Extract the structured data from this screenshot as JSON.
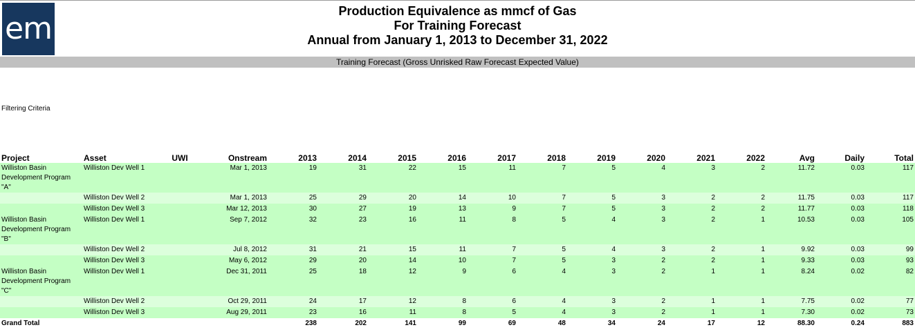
{
  "logo": {
    "text": "em"
  },
  "report": {
    "title": "Production Equivalence as mmcf of Gas",
    "subtitle": "For Training Forecast",
    "period": "Annual from January 1, 2013 to December 31, 2022",
    "banner": "Training Forecast (Gross Unrisked Raw Forecast Expected Value)",
    "filter_label": "Filtering Criteria"
  },
  "table": {
    "headers": [
      "Project",
      "Asset",
      "UWI",
      "Onstream",
      "2013",
      "2014",
      "2015",
      "2016",
      "2017",
      "2018",
      "2019",
      "2020",
      "2021",
      "2022",
      "Avg",
      "Daily",
      "Total"
    ],
    "rows": [
      [
        "Williston Basin Development Program \"A\"",
        "Williston Dev Well 1",
        "",
        "Mar 1, 2013",
        "19",
        "31",
        "22",
        "15",
        "11",
        "7",
        "5",
        "4",
        "3",
        "2",
        "11.72",
        "0.03",
        "117"
      ],
      [
        "",
        "Williston Dev Well 2",
        "",
        "Mar 1, 2013",
        "25",
        "29",
        "20",
        "14",
        "10",
        "7",
        "5",
        "3",
        "2",
        "2",
        "11.75",
        "0.03",
        "117"
      ],
      [
        "",
        "Williston Dev Well 3",
        "",
        "Mar 12, 2013",
        "30",
        "27",
        "19",
        "13",
        "9",
        "7",
        "5",
        "3",
        "2",
        "2",
        "11.77",
        "0.03",
        "118"
      ],
      [
        "Williston Basin Development Program \"B\"",
        "Williston Dev Well 1",
        "",
        "Sep 7, 2012",
        "32",
        "23",
        "16",
        "11",
        "8",
        "5",
        "4",
        "3",
        "2",
        "1",
        "10.53",
        "0.03",
        "105"
      ],
      [
        "",
        "Williston Dev Well 2",
        "",
        "Jul 8, 2012",
        "31",
        "21",
        "15",
        "11",
        "7",
        "5",
        "4",
        "3",
        "2",
        "1",
        "9.92",
        "0.03",
        "99"
      ],
      [
        "",
        "Williston Dev Well 3",
        "",
        "May 6, 2012",
        "29",
        "20",
        "14",
        "10",
        "7",
        "5",
        "3",
        "2",
        "2",
        "1",
        "9.33",
        "0.03",
        "93"
      ],
      [
        "Williston Basin Development Program \"C\"",
        "Williston Dev Well 1",
        "",
        "Dec 31, 2011",
        "25",
        "18",
        "12",
        "9",
        "6",
        "4",
        "3",
        "2",
        "1",
        "1",
        "8.24",
        "0.02",
        "82"
      ],
      [
        "",
        "Williston Dev Well 2",
        "",
        "Oct 29, 2011",
        "24",
        "17",
        "12",
        "8",
        "6",
        "4",
        "3",
        "2",
        "1",
        "1",
        "7.75",
        "0.02",
        "77"
      ],
      [
        "",
        "Williston Dev Well 3",
        "",
        "Aug 29, 2011",
        "23",
        "16",
        "11",
        "8",
        "5",
        "4",
        "3",
        "2",
        "1",
        "1",
        "7.30",
        "0.02",
        "73"
      ]
    ],
    "grand_total": [
      "Grand Total",
      "",
      "",
      "",
      "238",
      "202",
      "141",
      "99",
      "69",
      "48",
      "34",
      "24",
      "17",
      "12",
      "88.30",
      "0.24",
      "883"
    ]
  },
  "colors": {
    "logo_bg": "#17375e",
    "row_a": "#c4ffc4",
    "row_b": "#dcffdc",
    "banner": "#c0c0c0"
  }
}
